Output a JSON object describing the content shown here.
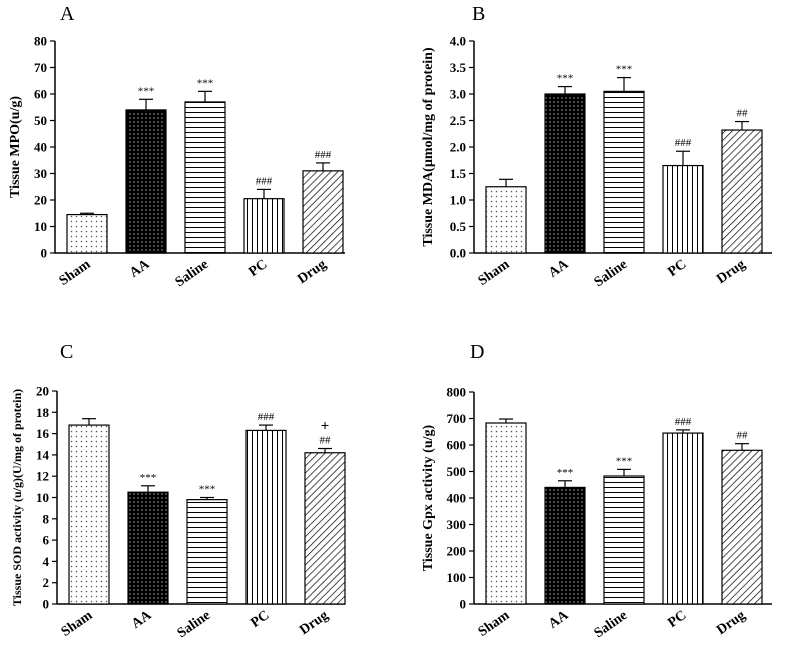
{
  "chart_data": [
    {
      "type": "bar",
      "panel_label": "A",
      "ylabel": "Tissue MPO(u/g)",
      "categories": [
        "Sham",
        "AA",
        "Saline",
        "PC",
        "Drug"
      ],
      "values": [
        14.5,
        54,
        57,
        20.5,
        31
      ],
      "errors": [
        0.5,
        4,
        4,
        3.5,
        3
      ],
      "significance": [
        "",
        "***",
        "***",
        "###",
        "###"
      ],
      "patterns": [
        "dots",
        "dense-dots",
        "horizontal",
        "vertical",
        "diagonal"
      ],
      "ylim": [
        0,
        80
      ],
      "yticks": [
        "0",
        "10",
        "20",
        "30",
        "40",
        "50",
        "60",
        "70",
        "80"
      ]
    },
    {
      "type": "bar",
      "panel_label": "B",
      "ylabel": "Tissue MDA(µmol/mg  of  protein)",
      "categories": [
        "Sham",
        "AA",
        "Saline",
        "PC",
        "Drug"
      ],
      "values": [
        1.25,
        3.0,
        3.05,
        1.65,
        2.32
      ],
      "errors": [
        0.14,
        0.14,
        0.26,
        0.27,
        0.16
      ],
      "significance": [
        "",
        "***",
        "***",
        "###",
        "##"
      ],
      "patterns": [
        "dots",
        "dense-dots",
        "horizontal",
        "vertical",
        "diagonal"
      ],
      "ylim": [
        0,
        4
      ],
      "yticks": [
        "0.0",
        "0.5",
        "1.0",
        "1.5",
        "2.0",
        "2.5",
        "3.0",
        "3.5",
        "4.0"
      ]
    },
    {
      "type": "bar",
      "panel_label": "C",
      "ylabel": "Tissue SOD activity (u/g)(U/mg of protein)",
      "categories": [
        "Sham",
        "AA",
        "Saline",
        "PC",
        "Drug"
      ],
      "values": [
        16.8,
        10.5,
        9.8,
        16.3,
        14.2
      ],
      "errors": [
        0.6,
        0.6,
        0.2,
        0.5,
        0.4
      ],
      "significance": [
        "",
        "***",
        "***",
        "###",
        "##"
      ],
      "extra_marks": [
        "",
        "",
        "",
        "",
        "+"
      ],
      "patterns": [
        "dots",
        "dense-dots",
        "horizontal",
        "vertical",
        "diagonal"
      ],
      "ylim": [
        0,
        20
      ],
      "yticks": [
        "0",
        "2",
        "4",
        "6",
        "8",
        "10",
        "12",
        "14",
        "16",
        "18",
        "20"
      ]
    },
    {
      "type": "bar",
      "panel_label": "D",
      "ylabel": "Tissue Gpx activity (u/g)",
      "categories": [
        "Sham",
        "AA",
        "Saline",
        "PC",
        "Drug"
      ],
      "values": [
        683,
        440,
        483,
        645,
        580
      ],
      "errors": [
        15,
        25,
        25,
        12,
        25
      ],
      "significance": [
        "",
        "***",
        "***",
        "###",
        "##"
      ],
      "patterns": [
        "dots",
        "dense-dots",
        "horizontal",
        "vertical",
        "diagonal"
      ],
      "ylim": [
        0,
        800
      ],
      "yticks": [
        "0",
        "100",
        "200",
        "300",
        "400",
        "500",
        "600",
        "700",
        "800"
      ]
    }
  ]
}
